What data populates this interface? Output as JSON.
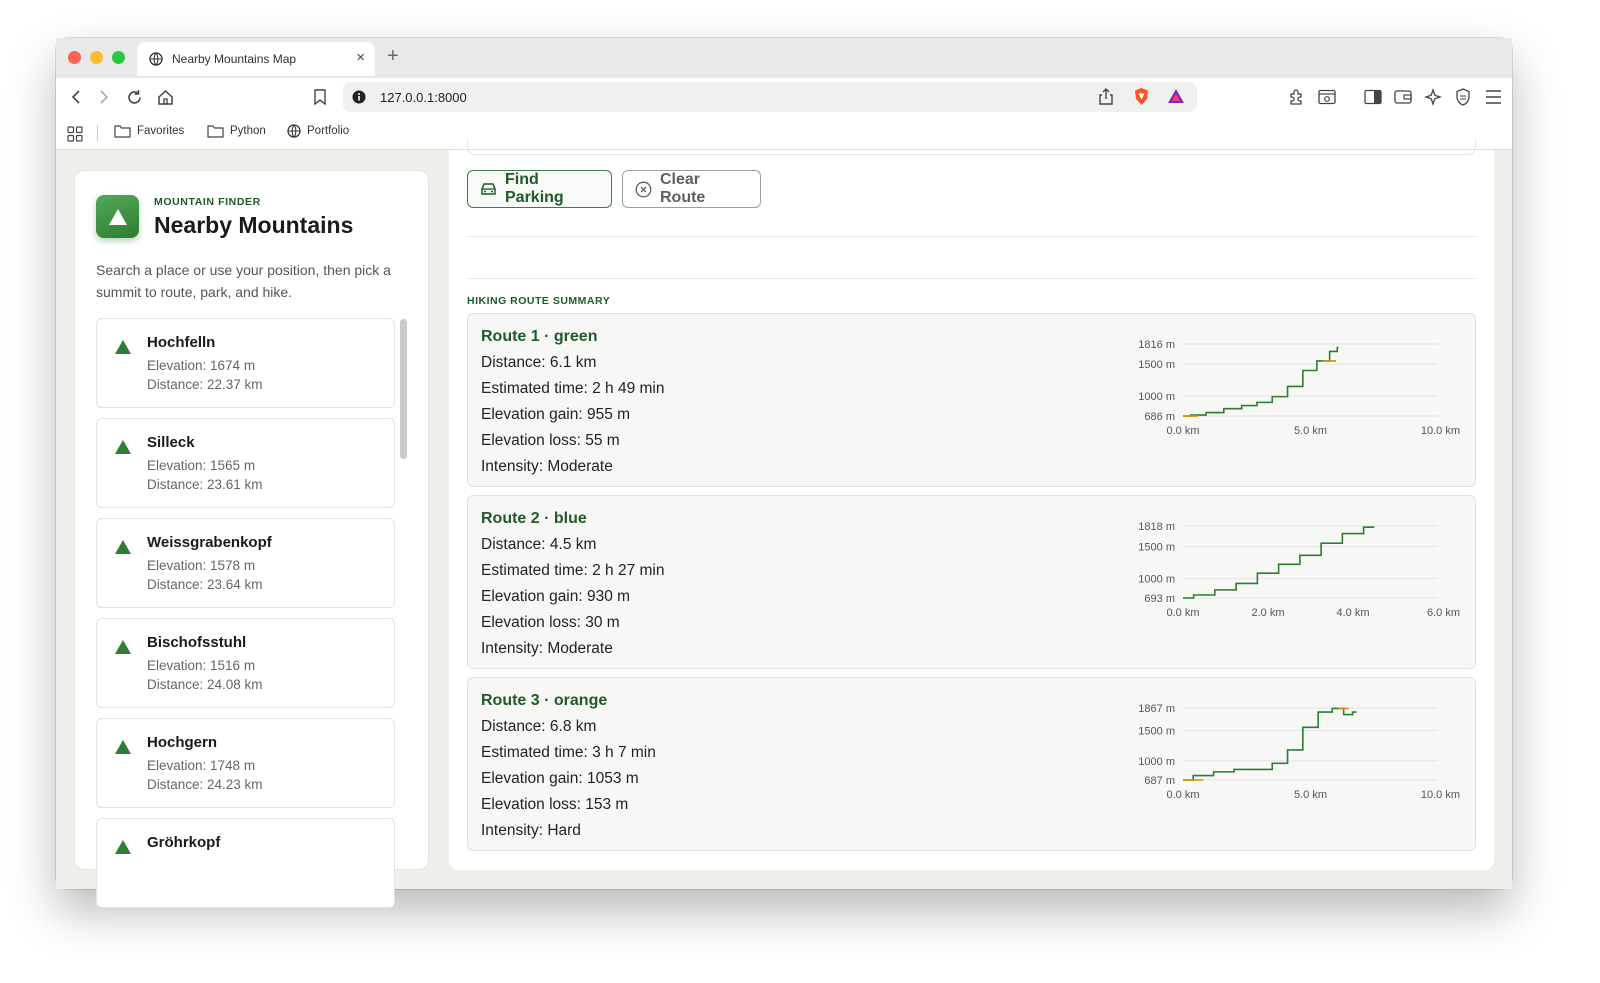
{
  "browser": {
    "tab_title": "Nearby Mountains Map",
    "tab_close": "×",
    "new_tab": "+",
    "url": "127.0.0.1:8000",
    "bookmarks": [
      "Favorites",
      "Python",
      "Portfolio"
    ]
  },
  "sidebar": {
    "eyebrow": "MOUNTAIN FINDER",
    "title": "Nearby Mountains",
    "intro": "Search a place or use your position, then pick a summit to route, park, and hike.",
    "mountains": [
      {
        "name": "Hochfelln",
        "elevation": "Elevation: 1674 m",
        "distance": "Distance: 22.37 km"
      },
      {
        "name": "Silleck",
        "elevation": "Elevation: 1565 m",
        "distance": "Distance: 23.61 km"
      },
      {
        "name": "Weissgrabenkopf",
        "elevation": "Elevation: 1578 m",
        "distance": "Distance: 23.64 km"
      },
      {
        "name": "Bischofsstuhl",
        "elevation": "Elevation: 1516 m",
        "distance": "Distance: 24.08 km"
      },
      {
        "name": "Hochgern",
        "elevation": "Elevation: 1748 m",
        "distance": "Distance: 24.23 km"
      },
      {
        "name": "Gröhrkopf",
        "elevation": "",
        "distance": ""
      }
    ]
  },
  "actions": {
    "find_parking": "Find Parking",
    "clear_route": "Clear Route"
  },
  "summary": {
    "label": "HIKING ROUTE SUMMARY",
    "routes": [
      {
        "title": "Route 1 · green",
        "distance": "Distance: 6.1 km",
        "time": "Estimated time: 2 h 49 min",
        "gain": "Elevation gain: 955 m",
        "loss": "Elevation loss: 55 m",
        "intensity": "Intensity: Moderate"
      },
      {
        "title": "Route 2 · blue",
        "distance": "Distance: 4.5 km",
        "time": "Estimated time: 2 h 27 min",
        "gain": "Elevation gain: 930 m",
        "loss": "Elevation loss: 30 m",
        "intensity": "Intensity: Moderate"
      },
      {
        "title": "Route 3 · orange",
        "distance": "Distance: 6.8 km",
        "time": "Estimated time: 3 h 7 min",
        "gain": "Elevation gain: 1053 m",
        "loss": "Elevation loss: 153 m",
        "intensity": "Intensity: Hard"
      }
    ]
  },
  "chart_data": [
    {
      "type": "line",
      "y_ticks": [
        "1816 m",
        "1500 m",
        "1000 m",
        "686 m"
      ],
      "x_ticks": [
        "0.0 km",
        "5.0 km",
        "10.0 km"
      ],
      "ylim": [
        686,
        1816
      ],
      "xlim": [
        0,
        10
      ],
      "x": [
        0,
        0.6,
        1.2,
        2.0,
        2.6,
        3.2,
        3.8,
        4.4,
        5.0,
        5.5,
        6.0,
        6.1
      ],
      "y": [
        686,
        700,
        740,
        800,
        850,
        900,
        990,
        1150,
        1400,
        1550,
        1700,
        1760
      ],
      "colors": [
        "#2e7d32",
        "#e08a00"
      ]
    },
    {
      "type": "line",
      "y_ticks": [
        "1818 m",
        "1500 m",
        "1000 m",
        "693 m"
      ],
      "x_ticks": [
        "0.0 km",
        "2.0 km",
        "4.0 km",
        "6.0 km"
      ],
      "ylim": [
        693,
        1818
      ],
      "xlim": [
        0,
        6
      ],
      "x": [
        0,
        0.5,
        1.0,
        1.5,
        2.0,
        2.5,
        3.0,
        3.5,
        4.0,
        4.5
      ],
      "y": [
        693,
        740,
        820,
        920,
        1080,
        1220,
        1360,
        1550,
        1700,
        1800
      ],
      "colors": [
        "#2e7d32"
      ]
    },
    {
      "type": "line",
      "y_ticks": [
        "1867 m",
        "1500 m",
        "1000 m",
        "687 m"
      ],
      "x_ticks": [
        "0.0 km",
        "5.0 km",
        "10.0 km"
      ],
      "ylim": [
        687,
        1867
      ],
      "xlim": [
        0,
        10
      ],
      "x": [
        0,
        0.8,
        1.6,
        2.4,
        3.2,
        3.8,
        4.4,
        5.0,
        5.6,
        6.1,
        6.5,
        6.8
      ],
      "y": [
        687,
        760,
        820,
        860,
        860,
        960,
        1180,
        1550,
        1800,
        1860,
        1760,
        1800
      ],
      "colors": [
        "#2e7d32",
        "#e08a00"
      ]
    }
  ]
}
